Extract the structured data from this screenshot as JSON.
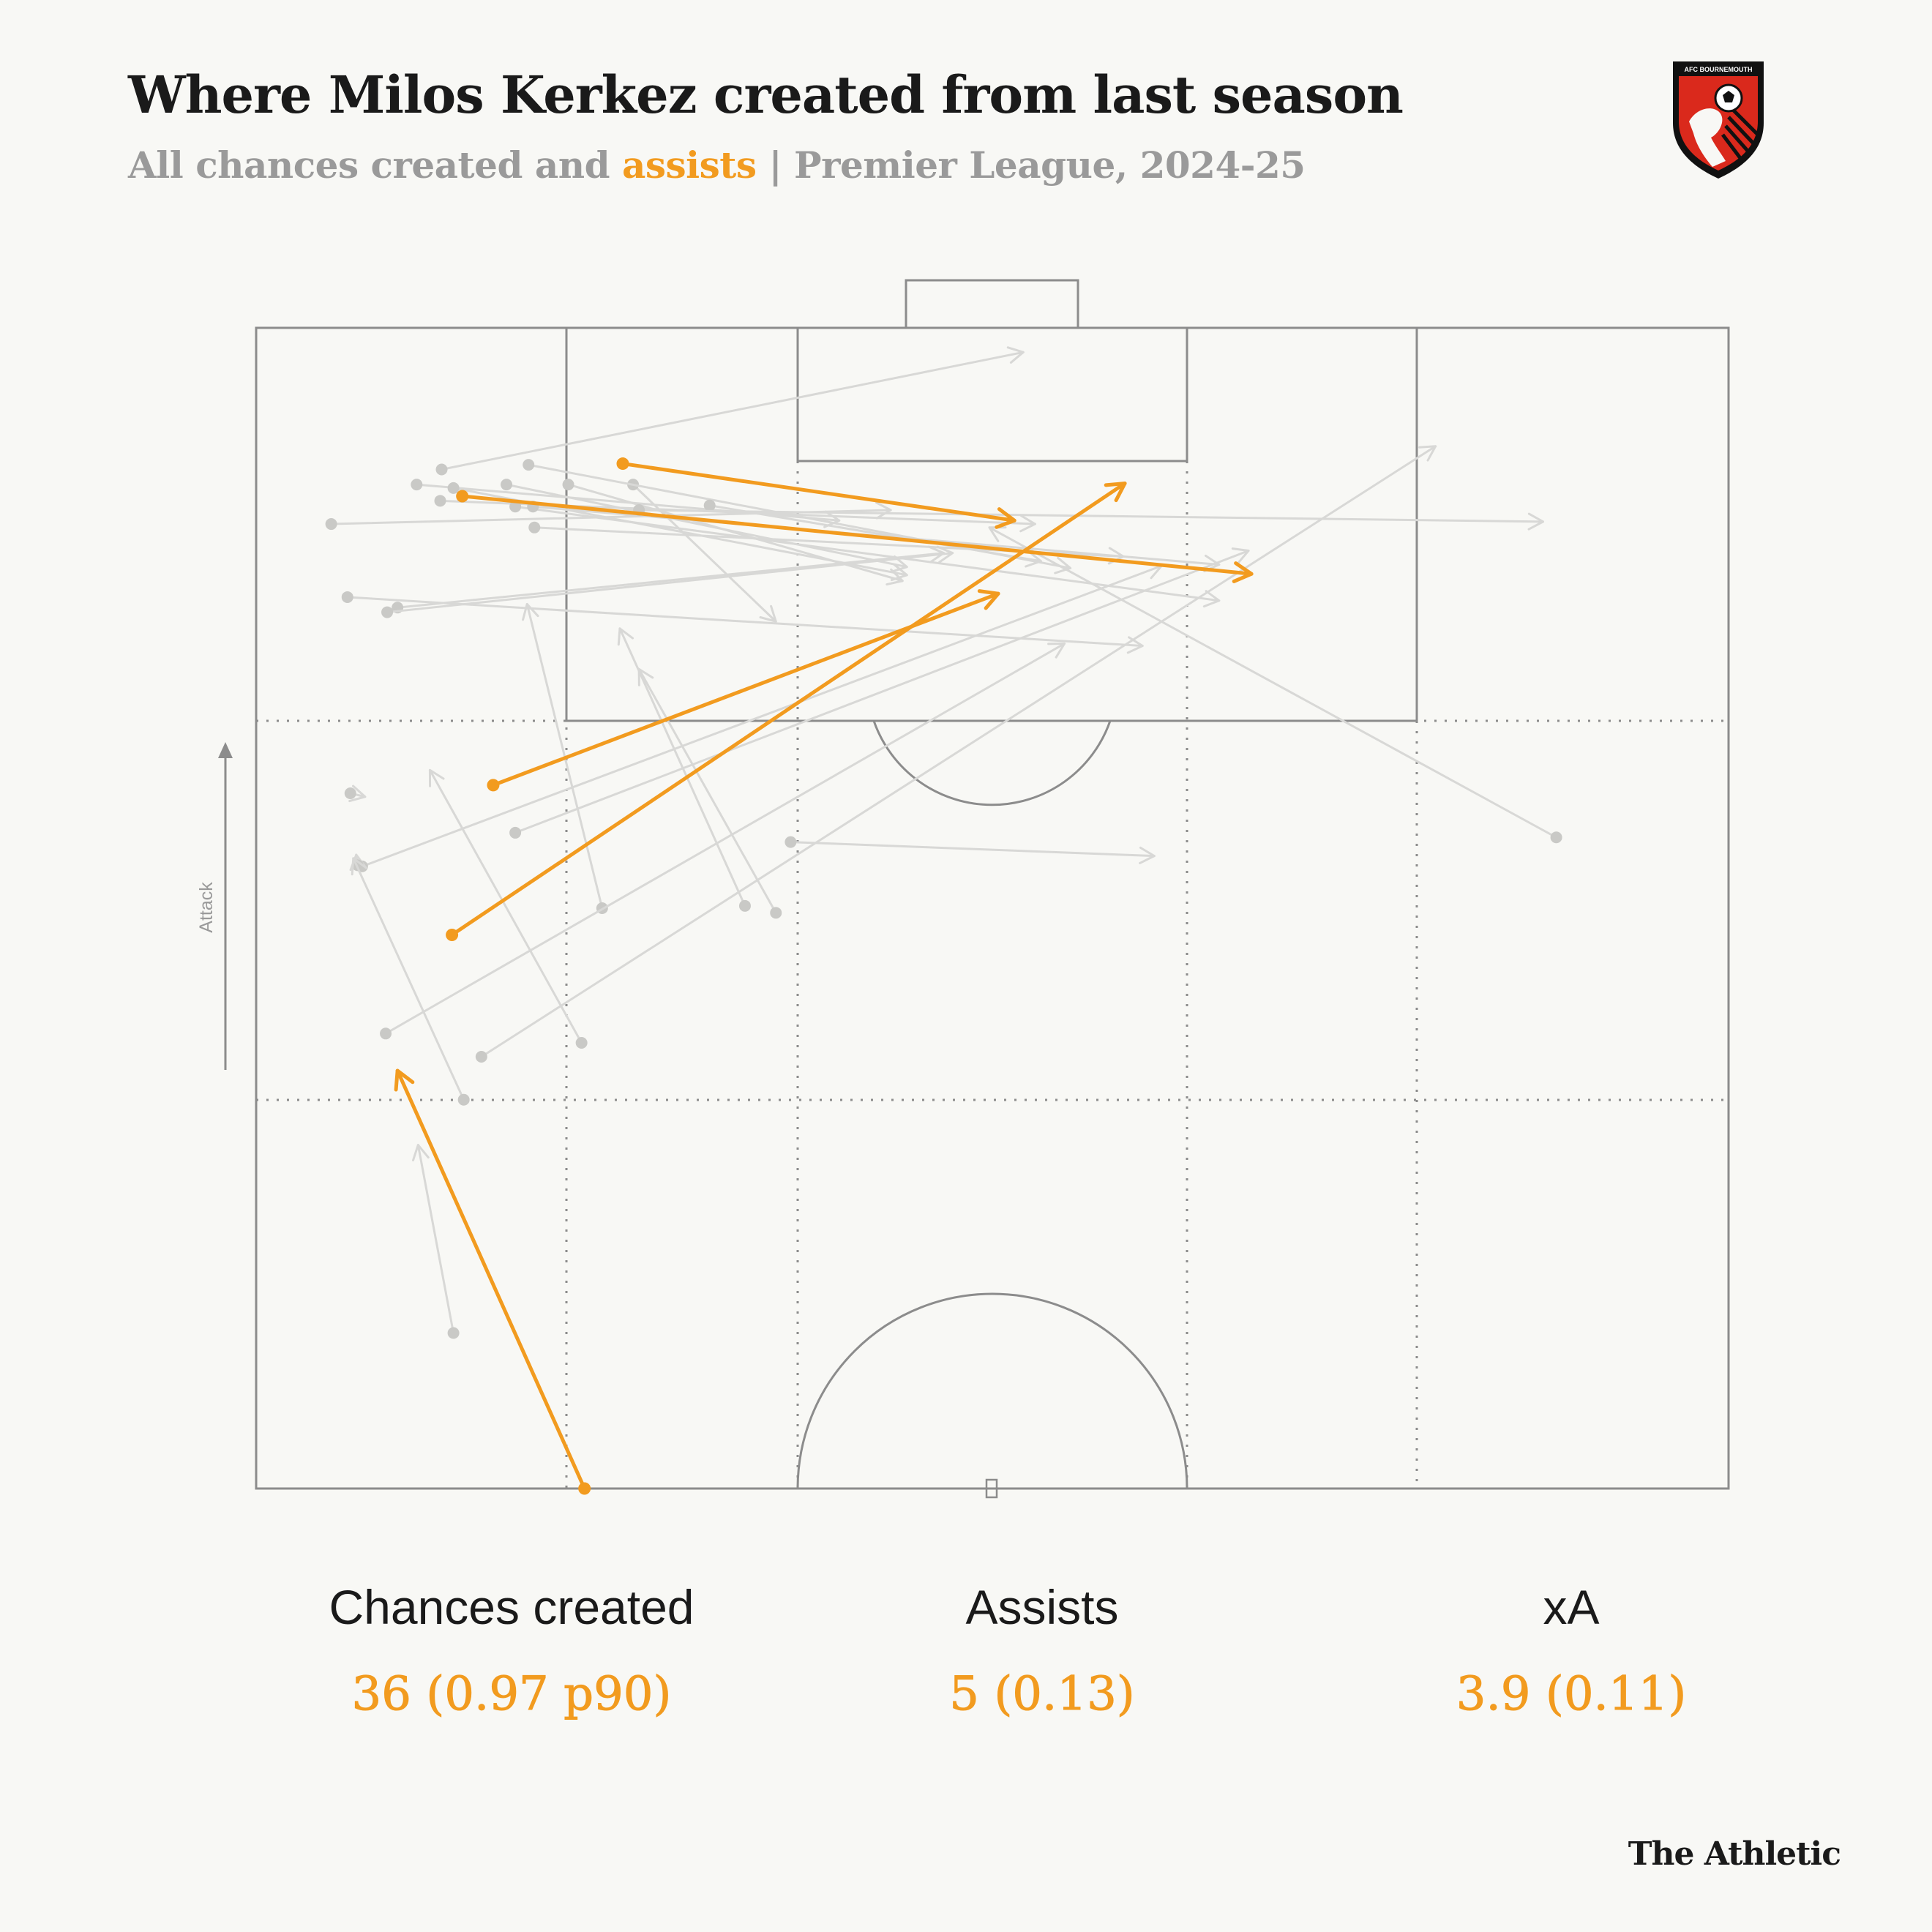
{
  "header": {
    "title": "Where Milos Kerkez created from last season",
    "subtitle_part1": "All chances created and ",
    "subtitle_highlight": "assists",
    "subtitle_part2": " | Premier League, 2024-25"
  },
  "crest": {
    "text": "AFC BOURNEMOUTH"
  },
  "colors": {
    "background": "#f8f8f5",
    "pitch_lines": "#8c8c8c",
    "chance": "#d8d8d6",
    "chance_dot": "#c9c9c6",
    "assist": "#f29b1f",
    "crest_red": "#da291c",
    "crest_black": "#111111"
  },
  "direction_label": "Attack",
  "stats": [
    {
      "label": "Chances created",
      "value": "36 (0.97 p90)"
    },
    {
      "label": "Assists",
      "value": "5 (0.13)"
    },
    {
      "label": "xA",
      "value": "3.9 (0.11)"
    }
  ],
  "brand": "The Athletic",
  "chart_data": {
    "type": "scatter",
    "description_of_units": "pitch coordinates: x = 0 (left touchline) to 100 (right touchline), y = 0 (halfway line) to 100 (opponent goal line)",
    "xlim": [
      0,
      100
    ],
    "ylim": [
      0,
      100
    ],
    "series": [
      {
        "name": "chances",
        "passes": [
          {
            "x1": 12.6,
            "y1": 87.8,
            "x2": 52.1,
            "y2": 97.9
          },
          {
            "x1": 10.9,
            "y1": 86.5,
            "x2": 39.6,
            "y2": 83.4
          },
          {
            "x1": 13.4,
            "y1": 86.2,
            "x2": 44.2,
            "y2": 78.7
          },
          {
            "x1": 12.5,
            "y1": 85.1,
            "x2": 52.9,
            "y2": 83.1
          },
          {
            "x1": 17.0,
            "y1": 86.5,
            "x2": 44.2,
            "y2": 79.4
          },
          {
            "x1": 21.2,
            "y1": 86.5,
            "x2": 43.9,
            "y2": 78.2
          },
          {
            "x1": 25.6,
            "y1": 86.5,
            "x2": 35.3,
            "y2": 74.7
          },
          {
            "x1": 18.5,
            "y1": 88.2,
            "x2": 55.3,
            "y2": 79.3
          },
          {
            "x1": 17.6,
            "y1": 84.6,
            "x2": 65.4,
            "y2": 76.5
          },
          {
            "x1": 18.8,
            "y1": 84.6,
            "x2": 65.4,
            "y2": 79.6
          },
          {
            "x1": 18.9,
            "y1": 82.8,
            "x2": 58.9,
            "y2": 80.3
          },
          {
            "x1": 30.8,
            "y1": 84.7,
            "x2": 53.3,
            "y2": 79.9
          },
          {
            "x1": 5.1,
            "y1": 83.1,
            "x2": 43.1,
            "y2": 84.3
          },
          {
            "x1": 26.0,
            "y1": 84.3,
            "x2": 87.4,
            "y2": 83.3
          },
          {
            "x1": 6.2,
            "y1": 76.8,
            "x2": 60.2,
            "y2": 72.6
          },
          {
            "x1": 9.6,
            "y1": 75.9,
            "x2": 46.7,
            "y2": 80.6
          },
          {
            "x1": 8.9,
            "y1": 75.5,
            "x2": 47.3,
            "y2": 80.6
          },
          {
            "x1": 88.3,
            "y1": 56.1,
            "x2": 49.8,
            "y2": 82.8
          },
          {
            "x1": 6.4,
            "y1": 59.9,
            "x2": 7.4,
            "y2": 59.6
          },
          {
            "x1": 7.2,
            "y1": 53.6,
            "x2": 61.5,
            "y2": 79.5
          },
          {
            "x1": 17.6,
            "y1": 56.5,
            "x2": 67.4,
            "y2": 80.8
          },
          {
            "x1": 23.5,
            "y1": 50.0,
            "x2": 18.4,
            "y2": 76.2
          },
          {
            "x1": 33.2,
            "y1": 50.2,
            "x2": 24.7,
            "y2": 74.1
          },
          {
            "x1": 35.3,
            "y1": 49.6,
            "x2": 26.0,
            "y2": 70.6
          },
          {
            "x1": 36.3,
            "y1": 55.7,
            "x2": 61.0,
            "y2": 54.5
          },
          {
            "x1": 6.9,
            "y1": 53.7,
            "x2": 6.8,
            "y2": 54.6
          },
          {
            "x1": 8.8,
            "y1": 39.2,
            "x2": 54.9,
            "y2": 72.8
          },
          {
            "x1": 15.3,
            "y1": 37.2,
            "x2": 80.1,
            "y2": 89.8
          },
          {
            "x1": 22.1,
            "y1": 38.4,
            "x2": 11.8,
            "y2": 61.9
          },
          {
            "x1": 14.1,
            "y1": 33.5,
            "x2": 6.6,
            "y2": 54.3
          },
          {
            "x1": 13.4,
            "y1": 13.4,
            "x2": 11.0,
            "y2": 29.6
          }
        ]
      },
      {
        "name": "assists",
        "passes": [
          {
            "x1": 24.9,
            "y1": 88.3,
            "x2": 51.5,
            "y2": 83.4
          },
          {
            "x1": 14.0,
            "y1": 85.5,
            "x2": 67.6,
            "y2": 78.8
          },
          {
            "x1": 16.1,
            "y1": 60.6,
            "x2": 50.4,
            "y2": 77.1
          },
          {
            "x1": 13.3,
            "y1": 47.7,
            "x2": 59.0,
            "y2": 86.6
          },
          {
            "x1": 22.3,
            "y1": 0.0,
            "x2": 9.6,
            "y2": 36.0
          }
        ]
      }
    ]
  }
}
